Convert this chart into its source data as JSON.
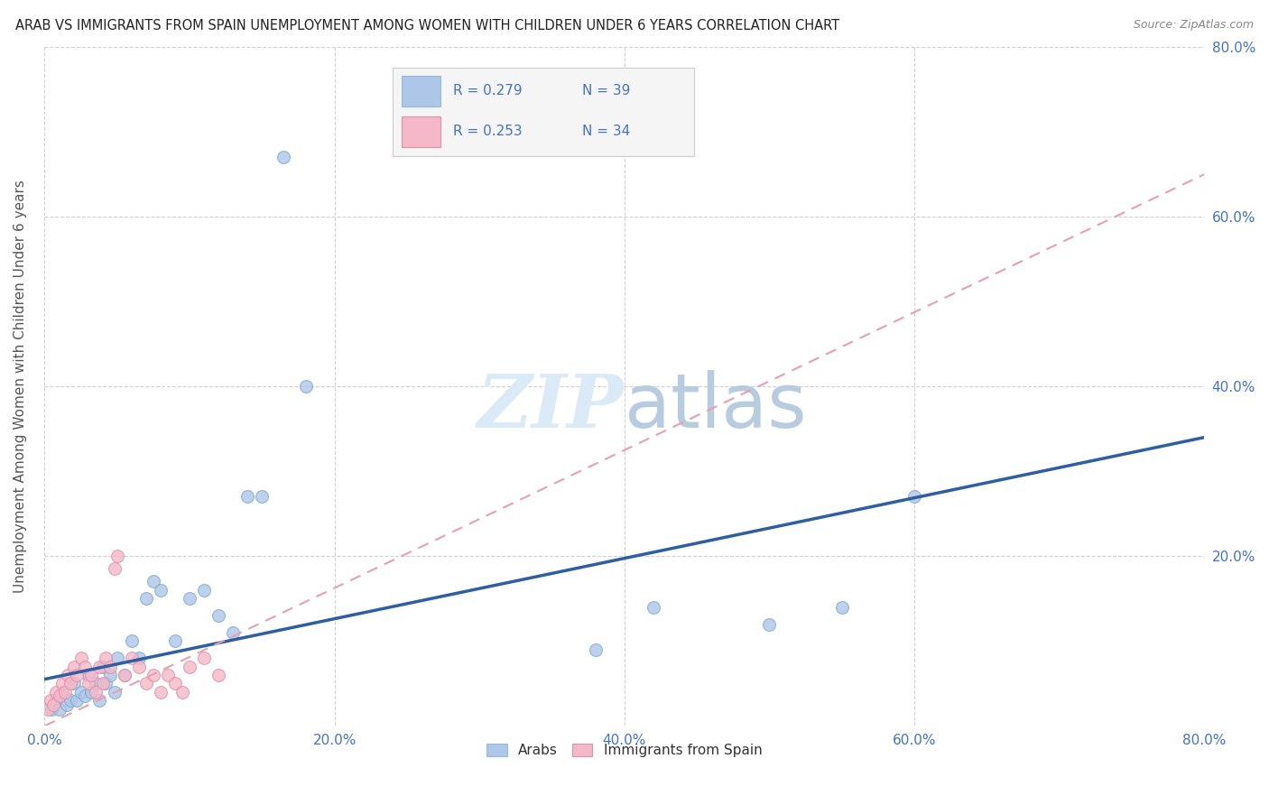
{
  "title": "ARAB VS IMMIGRANTS FROM SPAIN UNEMPLOYMENT AMONG WOMEN WITH CHILDREN UNDER 6 YEARS CORRELATION CHART",
  "source": "Source: ZipAtlas.com",
  "ylabel": "Unemployment Among Women with Children Under 6 years",
  "xlim": [
    0,
    0.8
  ],
  "ylim": [
    0,
    0.8
  ],
  "xticks": [
    0.0,
    0.2,
    0.4,
    0.6,
    0.8
  ],
  "xticklabels": [
    "0.0%",
    "20.0%",
    "40.0%",
    "60.0%",
    "80.0%"
  ],
  "right_yticks": [
    0.2,
    0.4,
    0.6,
    0.8
  ],
  "right_yticklabels": [
    "20.0%",
    "40.0%",
    "60.0%",
    "80.0%"
  ],
  "legend_R_arab": "R = 0.279",
  "legend_N_arab": "N = 39",
  "legend_R_spain": "R = 0.253",
  "legend_N_spain": "N = 34",
  "arab_color": "#aec6e8",
  "spain_color": "#f4b8c8",
  "arab_line_color": "#2e5fa3",
  "spain_line_color": "#e8a0b0",
  "watermark_color": "#daeaf7",
  "background_color": "#ffffff",
  "grid_color": "#d0d0d0",
  "title_color": "#222222",
  "source_color": "#888888",
  "tick_color": "#4472c4",
  "arab_x": [
    0.005,
    0.008,
    0.01,
    0.012,
    0.015,
    0.018,
    0.02,
    0.022,
    0.025,
    0.028,
    0.03,
    0.032,
    0.035,
    0.038,
    0.04,
    0.042,
    0.045,
    0.048,
    0.05,
    0.055,
    0.06,
    0.065,
    0.07,
    0.075,
    0.08,
    0.09,
    0.1,
    0.11,
    0.12,
    0.13,
    0.14,
    0.15,
    0.165,
    0.18,
    0.38,
    0.42,
    0.5,
    0.55,
    0.6
  ],
  "arab_y": [
    0.02,
    0.03,
    0.02,
    0.04,
    0.025,
    0.03,
    0.05,
    0.03,
    0.04,
    0.035,
    0.06,
    0.04,
    0.05,
    0.03,
    0.07,
    0.05,
    0.06,
    0.04,
    0.08,
    0.06,
    0.1,
    0.08,
    0.15,
    0.17,
    0.16,
    0.1,
    0.15,
    0.16,
    0.13,
    0.11,
    0.27,
    0.27,
    0.67,
    0.4,
    0.09,
    0.14,
    0.12,
    0.14,
    0.27
  ],
  "spain_x": [
    0.002,
    0.004,
    0.006,
    0.008,
    0.01,
    0.012,
    0.014,
    0.016,
    0.018,
    0.02,
    0.022,
    0.025,
    0.028,
    0.03,
    0.032,
    0.035,
    0.038,
    0.04,
    0.042,
    0.045,
    0.048,
    0.05,
    0.055,
    0.06,
    0.065,
    0.07,
    0.075,
    0.08,
    0.085,
    0.09,
    0.095,
    0.1,
    0.11,
    0.12
  ],
  "spain_y": [
    0.02,
    0.03,
    0.025,
    0.04,
    0.035,
    0.05,
    0.04,
    0.06,
    0.05,
    0.07,
    0.06,
    0.08,
    0.07,
    0.05,
    0.06,
    0.04,
    0.07,
    0.05,
    0.08,
    0.07,
    0.185,
    0.2,
    0.06,
    0.08,
    0.07,
    0.05,
    0.06,
    0.04,
    0.06,
    0.05,
    0.04,
    0.07,
    0.08,
    0.06
  ],
  "arab_line_x": [
    0.0,
    0.8
  ],
  "arab_line_y": [
    0.055,
    0.34
  ],
  "spain_line_x": [
    0.0,
    0.8
  ],
  "spain_line_y": [
    0.0,
    0.65
  ]
}
